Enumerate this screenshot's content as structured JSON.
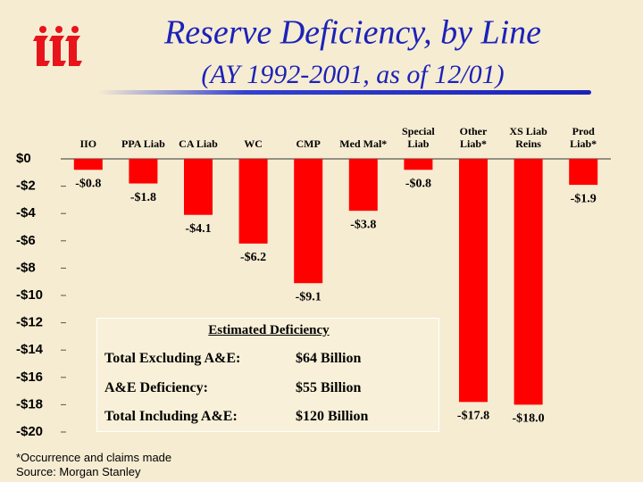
{
  "chart_data": {
    "type": "bar",
    "title": "Reserve Deficiency, by Line",
    "subtitle": "(AY 1992-2001, as of 12/01)",
    "categories": [
      "IIO",
      "PPA Liab",
      "CA Liab",
      "WC",
      "CMP",
      "Med Mal*",
      "Special\nLiab",
      "Other\nLiab*",
      "XS Liab\nReins",
      "Prod\nLiab*"
    ],
    "values": [
      -0.8,
      -1.8,
      -4.1,
      -6.2,
      -9.1,
      -3.8,
      -0.8,
      -17.8,
      -18.0,
      -1.9
    ],
    "value_labels": [
      "-$0.8",
      "-$1.8",
      "-$4.1",
      "-$6.2",
      "-$9.1",
      "-$3.8",
      "-$0.8",
      "-$17.8",
      "-$18.0",
      "-$1.9"
    ],
    "color": "#ff0000",
    "ylim": [
      -20,
      0
    ],
    "yticks": [
      {
        "value": 0,
        "label": "$0"
      },
      {
        "value": -2,
        "label": "-$2"
      },
      {
        "value": -4,
        "label": "-$4"
      },
      {
        "value": -6,
        "label": "-$6"
      },
      {
        "value": -8,
        "label": "-$8"
      },
      {
        "value": -10,
        "label": "-$10"
      },
      {
        "value": -12,
        "label": "-$12"
      },
      {
        "value": -14,
        "label": "-$14"
      },
      {
        "value": -16,
        "label": "-$16"
      },
      {
        "value": -18,
        "label": "-$18"
      },
      {
        "value": -20,
        "label": "-$20"
      }
    ],
    "inset": {
      "title": "Estimated Deficiency",
      "rows": [
        [
          "Total Excluding A&E:",
          "$64 Billion"
        ],
        [
          "A&E Deficiency:",
          "$55 Billion"
        ],
        [
          "Total Including A&E:",
          "$120 Billion"
        ]
      ]
    },
    "notes": [
      "*Occurrence and claims made",
      "Source: Morgan Stanley"
    ]
  }
}
